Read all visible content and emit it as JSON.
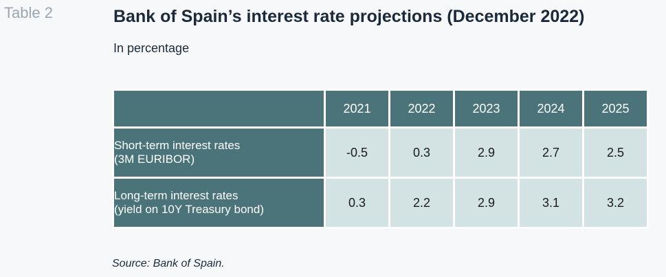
{
  "table_number": "Table 2",
  "title": "Bank of Spain’s interest rate projections (December 2022)",
  "subtitle": "In percentage",
  "table": {
    "years": [
      "2021",
      "2022",
      "2023",
      "2024",
      "2025"
    ],
    "rows": [
      {
        "label_line1": "Short-term interest rates",
        "label_line2": "(3M EURIBOR)",
        "values": [
          "-0.5",
          "0.3",
          "2.9",
          "2.7",
          "2.5"
        ]
      },
      {
        "label_line1": "Long-term interest rates",
        "label_line2": "(yield on 10Y Treasury bond)",
        "values": [
          "0.3",
          "2.2",
          "2.9",
          "3.1",
          "3.2"
        ]
      }
    ]
  },
  "source": "Source: Bank of Spain.",
  "colors": {
    "header_fill": "#4a7479",
    "cell_fill": "#d3e2e3",
    "background": "#f7f8f9"
  }
}
